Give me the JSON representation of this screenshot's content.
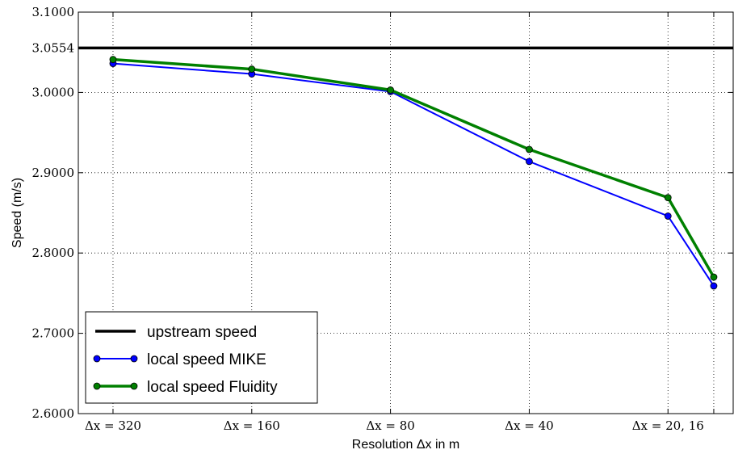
{
  "chart_data": {
    "type": "line",
    "xlabel": "Resolution Δx in m",
    "ylabel": "Speed (m/s)",
    "ylim": [
      2.6,
      3.1
    ],
    "grid": true,
    "legend_position": "bottom-left",
    "categories": [
      "Δx = 320",
      "Δx = 160",
      "Δx = 80",
      "Δx = 40",
      "Δx = 20, 16"
    ],
    "x": [
      0,
      1,
      2,
      3,
      4,
      4.33
    ],
    "y_ticks": [
      "2.6000",
      "2.7000",
      "2.8000",
      "2.9000",
      "3.0000",
      "3.0554",
      "3.1000"
    ],
    "y_tick_values": [
      2.6,
      2.7,
      2.8,
      2.9,
      3.0,
      3.0554,
      3.1
    ],
    "series": [
      {
        "name": "upstream speed",
        "kind": "hline",
        "value": 3.0554,
        "color": "#000000",
        "linewidth": 3.5
      },
      {
        "name": "local speed MIKE",
        "x": [
          0,
          1,
          2,
          3,
          4,
          4.33
        ],
        "values": [
          3.036,
          3.023,
          3.001,
          2.914,
          2.846,
          2.759
        ],
        "color": "#0000ff",
        "linewidth": 2
      },
      {
        "name": "local speed Fluidity",
        "x": [
          0,
          1,
          2,
          3,
          4,
          4.33
        ],
        "values": [
          3.041,
          3.029,
          3.003,
          2.929,
          2.869,
          2.77
        ],
        "color": "#008000",
        "linewidth": 3.5
      }
    ]
  }
}
